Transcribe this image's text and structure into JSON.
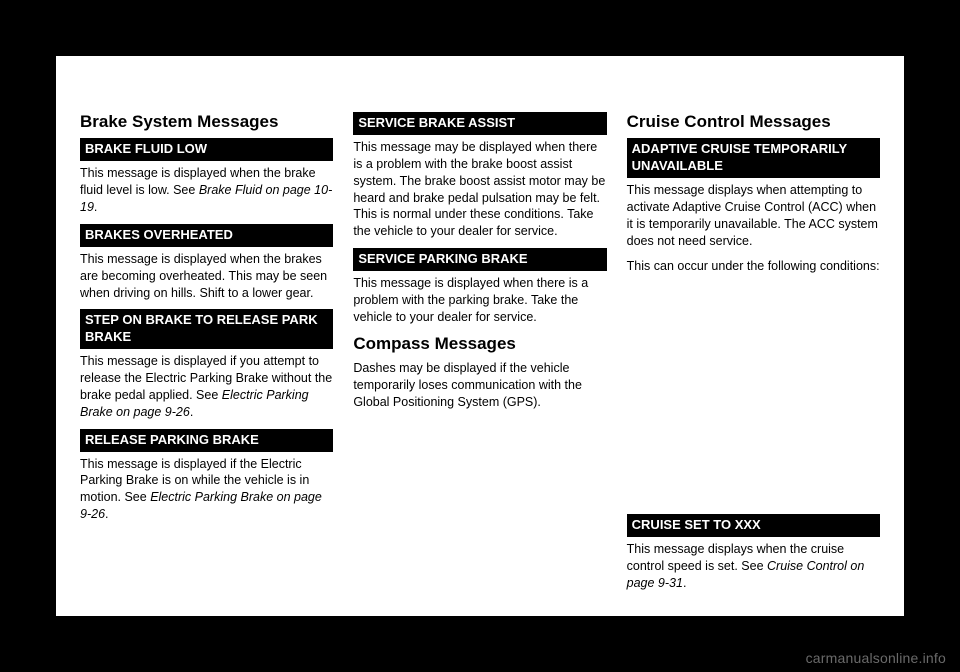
{
  "col1": {
    "title": "Brake System Messages",
    "items": [
      {
        "heading": "BRAKE FLUID LOW",
        "pre": "This message is displayed when the brake fluid level is low. See ",
        "ref": "Brake Fluid on page 10-19",
        "post": "."
      },
      {
        "heading": "BRAKES OVERHEATED",
        "text": "This message is displayed when the brakes are becoming overheated. This may be seen when driving on hills. Shift to a lower gear."
      },
      {
        "heading": "STEP ON BRAKE TO RELEASE PARK BRAKE",
        "pre": "This message is displayed if you attempt to release the Electric Parking Brake without the brake pedal applied. See ",
        "ref": "Electric Parking Brake on page 9-26",
        "post": "."
      },
      {
        "heading": "RELEASE PARKING BRAKE",
        "pre": "This message is displayed if the Electric Parking Brake is on while the vehicle is in motion. See ",
        "ref": "Electric Parking Brake on page 9-26",
        "post": "."
      }
    ]
  },
  "col2": {
    "items": [
      {
        "heading": "SERVICE BRAKE ASSIST",
        "text": "This message may be displayed when there is a problem with the brake boost assist system. The brake boost assist motor may be heard and brake pedal pulsation may be felt. This is normal under these conditions. Take the vehicle to your dealer for service."
      },
      {
        "heading": "SERVICE PARKING BRAKE",
        "text": "This message is displayed when there is a problem with the parking brake. Take the vehicle to your dealer for service."
      }
    ],
    "title2": "Compass Messages",
    "compass_text": "Dashes may be displayed if the vehicle temporarily loses communication with the Global Positioning System (GPS)."
  },
  "col3": {
    "title": "Cruise Control Messages",
    "items": [
      {
        "heading": "ADAPTIVE CRUISE TEMPORARILY UNAVAILABLE",
        "text": "This message displays when attempting to activate Adaptive Cruise Control (ACC) when it is temporarily unavailable. The ACC system does not need service."
      }
    ],
    "conditions_text": "This can occur under the following conditions:",
    "cruise_set": {
      "heading": "CRUISE SET TO XXX",
      "pre": "This message displays when the cruise control speed is set. See ",
      "ref": "Cruise Control on page 9-31",
      "post": "."
    }
  },
  "watermark": "carmanualsonline.info"
}
